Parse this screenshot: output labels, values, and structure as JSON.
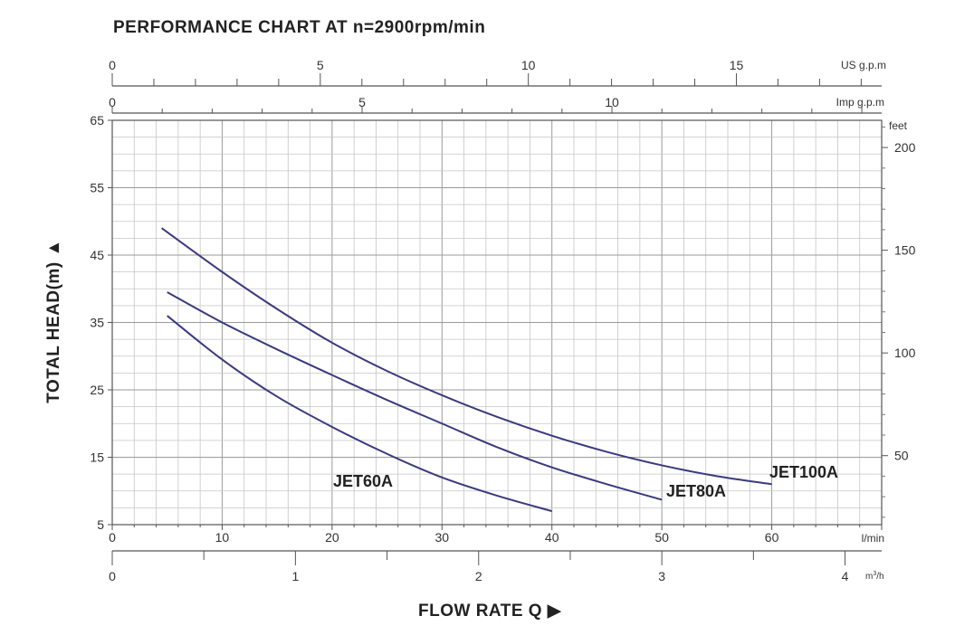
{
  "chart_data": {
    "type": "line",
    "title": "PERFORMANCE CHART AT n=2900rpm/min",
    "xlabel": "FLOW RATE Q",
    "ylabel": "TOTAL HEAD(m)",
    "xlim": [
      0,
      70
    ],
    "ylim": [
      5,
      65
    ],
    "grid": true,
    "axes": {
      "x_lpm": {
        "unit": "l/min",
        "ticks": [
          0,
          10,
          20,
          30,
          40,
          50,
          60
        ],
        "tick_labels": [
          "0",
          "10",
          "20",
          "30",
          "40",
          "50",
          "60"
        ]
      },
      "x_m3h": {
        "unit": "m³/h",
        "unit_main": "m",
        "unit_sup": "3",
        "unit_tail": "/h",
        "ticks": [
          0,
          1,
          2,
          3,
          4
        ],
        "tick_labels": [
          "0",
          "1",
          "2",
          "3",
          "4"
        ]
      },
      "x_usgpm": {
        "unit": "US g.p.m",
        "ticks": [
          0,
          5,
          10,
          15
        ],
        "tick_labels": [
          "0",
          "5",
          "10",
          "15"
        ]
      },
      "x_impgpm": {
        "unit": "Imp g.p.m",
        "ticks": [
          0,
          5,
          10
        ],
        "tick_labels": [
          "0",
          "5",
          "10"
        ]
      },
      "y_m": {
        "ticks": [
          5,
          15,
          25,
          35,
          45,
          55,
          65
        ],
        "tick_labels": [
          "5",
          "15",
          "25",
          "35",
          "45",
          "55",
          "65"
        ]
      },
      "y_feet": {
        "unit": "feet",
        "ticks": [
          50,
          100,
          150,
          200
        ],
        "tick_labels": [
          "50",
          "100",
          "150",
          "200"
        ]
      }
    },
    "series": [
      {
        "name": "JET60A",
        "color": "#3a3a7e",
        "x": [
          5,
          10,
          15,
          20,
          25,
          30,
          35,
          40
        ],
        "y": [
          36,
          29.5,
          24,
          19.5,
          15.5,
          12,
          9.3,
          7
        ]
      },
      {
        "name": "JET80A",
        "color": "#3a3a7e",
        "x": [
          5,
          10,
          15,
          20,
          25,
          30,
          35,
          40,
          45,
          50
        ],
        "y": [
          39.5,
          35,
          31,
          27.2,
          23.5,
          20,
          16.5,
          13.5,
          11,
          8.7
        ]
      },
      {
        "name": "JET100A",
        "color": "#3a3a7e",
        "x": [
          4.5,
          10,
          15,
          20,
          25,
          30,
          35,
          40,
          45,
          50,
          55,
          60
        ],
        "y": [
          49,
          42.5,
          37,
          32,
          27.8,
          24.2,
          21,
          18.2,
          15.8,
          13.8,
          12.2,
          11
        ]
      }
    ]
  }
}
